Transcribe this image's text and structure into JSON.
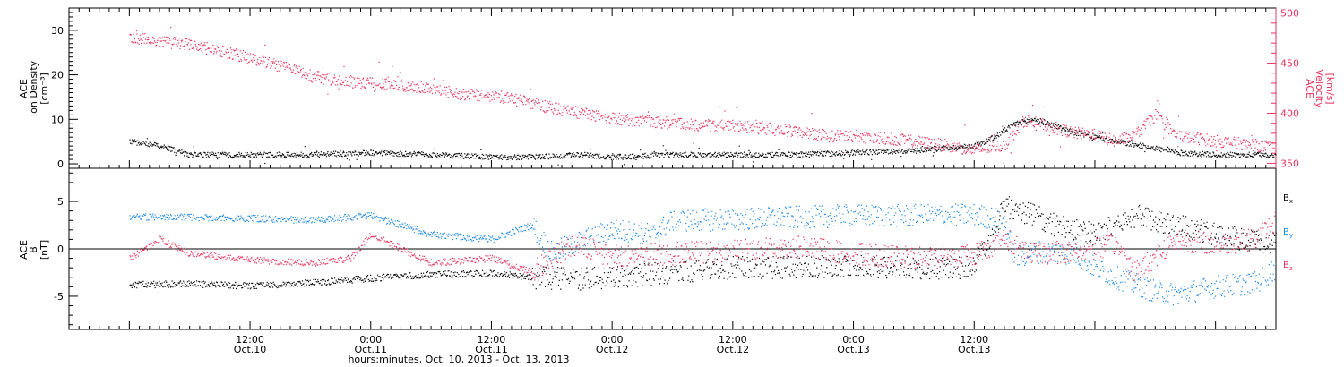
{
  "chart_data": [
    {
      "type": "scatter",
      "panel": "plasma",
      "left_axis_title": [
        "ACE",
        "Ion Density",
        "[cm⁻³]"
      ],
      "right_axis_title": [
        "ACE",
        "Velocity",
        "[km/s]"
      ],
      "ylim_left": [
        -1,
        35
      ],
      "ylim_right": [
        345,
        505
      ],
      "yticks_left": [
        "0",
        "10",
        "20",
        "30"
      ],
      "yticks_right": [
        "350",
        "400",
        "450",
        "500"
      ],
      "series": [
        {
          "axis": "left",
          "color": "#000000",
          "x": [
            0,
            3,
            6,
            12,
            18,
            24,
            30,
            36,
            40,
            45,
            48,
            54,
            60,
            66,
            72,
            78,
            81,
            84,
            86,
            88,
            90,
            94,
            96,
            98,
            102,
            104,
            108,
            112,
            114
          ],
          "y": [
            5,
            4,
            2,
            2,
            2,
            2.5,
            2,
            1.5,
            1.5,
            2,
            1.5,
            2,
            2,
            2,
            2.5,
            3,
            3.5,
            4,
            6,
            9,
            10,
            7,
            6,
            5,
            3.5,
            2.5,
            2,
            2,
            2
          ]
        },
        {
          "axis": "right",
          "color": "#e8335e",
          "x": [
            0,
            3,
            6,
            9,
            12,
            15,
            18,
            21,
            24,
            27,
            30,
            33,
            36,
            39,
            42,
            45,
            48,
            51,
            54,
            57,
            60,
            63,
            66,
            69,
            72,
            75,
            78,
            81,
            84,
            87,
            89,
            91,
            94,
            96,
            98,
            100,
            102,
            104,
            108,
            112,
            114
          ],
          "y": [
            475,
            472,
            468,
            462,
            455,
            447,
            437,
            432,
            430,
            428,
            425,
            418,
            418,
            412,
            405,
            400,
            395,
            392,
            390,
            388,
            387,
            385,
            382,
            378,
            376,
            375,
            372,
            368,
            363,
            368,
            393,
            388,
            380,
            378,
            372,
            378,
            398,
            378,
            372,
            368,
            365
          ]
        }
      ]
    },
    {
      "type": "scatter",
      "panel": "magnetic-field",
      "left_axis_title": [
        "ACE",
        "B",
        "[nT]"
      ],
      "ylim": [
        -8.5,
        8.5
      ],
      "yticks": [
        "-5",
        "0",
        "5"
      ],
      "legend_placement": "right",
      "series": [
        {
          "name": "Bx",
          "color": "#000000",
          "x": [
            0,
            6,
            12,
            18,
            24,
            30,
            36,
            40,
            44,
            48,
            54,
            60,
            66,
            72,
            78,
            84,
            87,
            90,
            92,
            96,
            100,
            104,
            108,
            112,
            114
          ],
          "y": [
            -3.8,
            -3.7,
            -3.9,
            -3.6,
            -3.1,
            -2.7,
            -2.6,
            -3.0,
            -3.2,
            -3.0,
            -2.5,
            -2.0,
            -2.0,
            -1.8,
            -2.0,
            -2.0,
            4.5,
            3.5,
            2.5,
            1.5,
            3.5,
            2.5,
            1.5,
            0.8,
            0.5
          ]
        },
        {
          "name": "By",
          "color": "#1e88e5",
          "x": [
            0,
            6,
            12,
            18,
            24,
            27,
            30,
            36,
            40,
            42,
            44,
            48,
            52,
            54,
            60,
            66,
            72,
            78,
            84,
            87,
            88,
            90,
            94,
            96,
            98,
            102,
            104,
            108,
            112,
            114
          ],
          "y": [
            3.4,
            3.3,
            3.2,
            3.0,
            3.5,
            2.5,
            1.5,
            1.0,
            2.5,
            -0.5,
            0.5,
            2.0,
            1.5,
            3.0,
            3.1,
            3.3,
            3.5,
            3.5,
            3.6,
            3.0,
            -1.0,
            -0.3,
            -0.5,
            -2.0,
            -3.0,
            -4.5,
            -4.8,
            -4.0,
            -3.6,
            -2.0
          ]
        },
        {
          "name": "Bz",
          "color": "#e8335e",
          "x": [
            0,
            3,
            6,
            12,
            18,
            22,
            24,
            30,
            36,
            40,
            44,
            48,
            54,
            60,
            66,
            72,
            78,
            84,
            87,
            90,
            94,
            98,
            100,
            104,
            108,
            112,
            114
          ],
          "y": [
            -1.0,
            1.0,
            -0.5,
            -1.2,
            -1.5,
            -1.0,
            1.5,
            -1.5,
            -1.0,
            -2.5,
            0.5,
            -0.8,
            -0.5,
            -0.2,
            0.2,
            -0.5,
            -1.0,
            -0.6,
            1.0,
            -0.5,
            -0.3,
            0.5,
            -2.5,
            1.0,
            0.5,
            1.0,
            3.0
          ]
        }
      ],
      "legend": [
        {
          "main": "B",
          "sub": "x",
          "color": "#000000"
        },
        {
          "main": "B",
          "sub": "y",
          "color": "#1e88e5"
        },
        {
          "main": "B",
          "sub": "z",
          "color": "#e8335e"
        }
      ]
    }
  ],
  "x_axis": {
    "range_hours": [
      -6,
      114
    ],
    "xlabel": "hours:minutes, Oct. 10, 2013 - Oct. 13, 2013",
    "major_ticks": [
      {
        "t": 12,
        "time": "12:00",
        "date": "Oct.10"
      },
      {
        "t": 24,
        "time": "0:00",
        "date": "Oct.11"
      },
      {
        "t": 36,
        "time": "12:00",
        "date": "Oct.11"
      },
      {
        "t": 48,
        "time": "0:00",
        "date": "Oct.12"
      },
      {
        "t": 60,
        "time": "12:00",
        "date": "Oct.12"
      },
      {
        "t": 72,
        "time": "0:00",
        "date": "Oct.13"
      },
      {
        "t": 84,
        "time": "12:00",
        "date": "Oct.13"
      }
    ]
  }
}
